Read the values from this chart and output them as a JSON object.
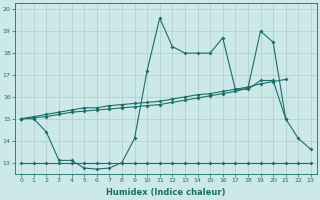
{
  "xlabel": "Humidex (Indice chaleur)",
  "background_color": "#cde8e8",
  "grid_color": "#b0cccc",
  "line_color": "#1a6e6a",
  "xlim": [
    -0.5,
    23.5
  ],
  "ylim": [
    12.5,
    20.3
  ],
  "x_zigzag": [
    0,
    1,
    2,
    3,
    4,
    5,
    6,
    7,
    8,
    9,
    10,
    11,
    12,
    13,
    14,
    15,
    16,
    17,
    18,
    19,
    20,
    21,
    22,
    23
  ],
  "y_zigzag": [
    15.0,
    15.0,
    14.4,
    13.1,
    13.1,
    12.75,
    12.7,
    12.75,
    13.0,
    14.1,
    17.2,
    19.6,
    18.3,
    18.0,
    18.0,
    18.0,
    18.7,
    16.35,
    16.35,
    16.75,
    16.75,
    15.0,
    14.1,
    13.6
  ],
  "x_trend1": [
    0,
    1,
    2,
    3,
    4,
    5,
    6,
    7,
    8,
    9,
    10,
    11,
    12,
    13,
    14,
    15,
    16,
    17,
    18,
    19,
    20,
    21
  ],
  "y_trend1": [
    15.0,
    15.1,
    15.2,
    15.3,
    15.4,
    15.5,
    15.5,
    15.6,
    15.65,
    15.7,
    15.75,
    15.8,
    15.9,
    16.0,
    16.1,
    16.15,
    16.25,
    16.35,
    16.45,
    16.6,
    16.7,
    16.8
  ],
  "x_trend2": [
    0,
    1,
    2,
    3,
    4,
    5,
    6,
    7,
    8,
    9,
    10,
    11,
    12,
    13,
    14,
    15,
    16,
    17,
    18,
    19,
    20,
    21
  ],
  "y_trend2": [
    15.0,
    15.05,
    15.1,
    15.2,
    15.3,
    15.35,
    15.4,
    15.45,
    15.5,
    15.55,
    15.6,
    15.65,
    15.75,
    15.85,
    15.95,
    16.05,
    16.15,
    16.25,
    16.4,
    19.0,
    18.5,
    15.0
  ],
  "x_flat": [
    0,
    1,
    2,
    3,
    4,
    5,
    6,
    7,
    8,
    9,
    10,
    11,
    12,
    13,
    14,
    15,
    16,
    17,
    18,
    19,
    20,
    21,
    22,
    23
  ],
  "y_flat": [
    13.0,
    13.0,
    13.0,
    13.0,
    13.0,
    13.0,
    13.0,
    13.0,
    13.0,
    13.0,
    13.0,
    13.0,
    13.0,
    13.0,
    13.0,
    13.0,
    13.0,
    13.0,
    13.0,
    13.0,
    13.0,
    13.0,
    13.0,
    13.0
  ],
  "yticks": [
    13,
    14,
    15,
    16,
    17,
    18,
    19,
    20
  ],
  "xticks": [
    0,
    1,
    2,
    3,
    4,
    5,
    6,
    7,
    8,
    9,
    10,
    11,
    12,
    13,
    14,
    15,
    16,
    17,
    18,
    19,
    20,
    21,
    22,
    23
  ]
}
